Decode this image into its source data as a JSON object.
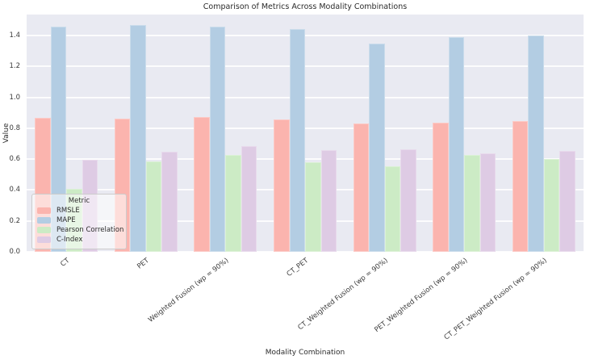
{
  "figure": {
    "title": "Comparison of Metrics Across Modality Combinations",
    "xlabel": "Modality Combination",
    "ylabel": "Value"
  },
  "legend": {
    "title": "Metric",
    "entries": [
      "RMSLE",
      "MAPE",
      "Pearson Correlation",
      "C-Index"
    ]
  },
  "colors": {
    "plot_background": "#e9eaf2",
    "gridline": "#ffffff",
    "rmsle": "#fbb4ae",
    "mape": "#b3cde3",
    "pearson": "#ccebc5",
    "c_index": "#decbe4"
  },
  "chart_data": {
    "type": "bar",
    "title": "Comparison of Metrics Across Modality Combinations",
    "xlabel": "Modality Combination",
    "ylabel": "Value",
    "categories": [
      "CT",
      "PET",
      "Weighted Fusion (wp = 90%)",
      "CT_PET",
      "CT_Weighted Fusion (wp = 90%)",
      "PET_Weighted Fusion (wp = 90%)",
      "CT_PET_Weighted Fusion (wp = 90%)"
    ],
    "series": [
      {
        "name": "RMSLE",
        "color": "#fbb4ae",
        "values": [
          0.865,
          0.86,
          0.87,
          0.855,
          0.83,
          0.835,
          0.845
        ]
      },
      {
        "name": "MAPE",
        "color": "#b3cde3",
        "values": [
          1.46,
          1.47,
          1.46,
          1.44,
          1.35,
          1.39,
          1.4
        ]
      },
      {
        "name": "Pearson Correlation",
        "color": "#ccebc5",
        "values": [
          0.405,
          0.585,
          0.625,
          0.58,
          0.555,
          0.625,
          0.6
        ]
      },
      {
        "name": "C-Index",
        "color": "#decbe4",
        "values": [
          0.595,
          0.65,
          0.685,
          0.66,
          0.665,
          0.635,
          0.655
        ]
      }
    ],
    "ylim": [
      0,
      1.536
    ],
    "yticks": [
      0.0,
      0.2,
      0.4,
      0.6,
      0.8,
      1.0,
      1.2,
      1.4
    ],
    "grid": true,
    "legend_title": "Metric",
    "legend_position": "lower left"
  }
}
